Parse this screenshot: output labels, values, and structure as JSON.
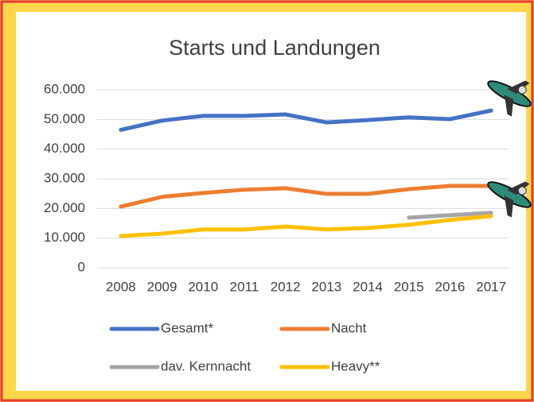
{
  "chart_data": {
    "type": "line",
    "title": "Starts und Landungen",
    "categories": [
      "2008",
      "2009",
      "2010",
      "2011",
      "2012",
      "2013",
      "2014",
      "2015",
      "2016",
      "2017"
    ],
    "series": [
      {
        "name": "Gesamt*",
        "color": "#4472c4",
        "values": [
          46500,
          49600,
          51200,
          51200,
          51700,
          49000,
          49800,
          50700,
          50100,
          53000
        ]
      },
      {
        "name": "Nacht",
        "color": "#ed7d31",
        "values": [
          20600,
          23900,
          25200,
          26300,
          26800,
          24900,
          24900,
          26500,
          27600,
          27600
        ]
      },
      {
        "name": "dav. Kernnacht",
        "color": "#a5a5a5",
        "values": [
          null,
          null,
          null,
          null,
          null,
          null,
          null,
          16900,
          17700,
          18500
        ]
      },
      {
        "name": "Heavy**",
        "color": "#ffc000",
        "values": [
          10700,
          11500,
          12900,
          12900,
          13900,
          12900,
          13400,
          14500,
          16100,
          17400
        ]
      }
    ],
    "ylim": [
      0,
      60000
    ],
    "yticks": [
      0,
      {
        "value": 10000,
        "label": "10.000"
      },
      {
        "value": 20000,
        "label": "20.000"
      },
      {
        "value": 30000,
        "label": "30.000"
      },
      {
        "value": 40000,
        "label": "40.000"
      },
      {
        "value": 50000,
        "label": "50.000"
      },
      {
        "value": 60000,
        "label": "60.000"
      }
    ],
    "grid": true
  }
}
